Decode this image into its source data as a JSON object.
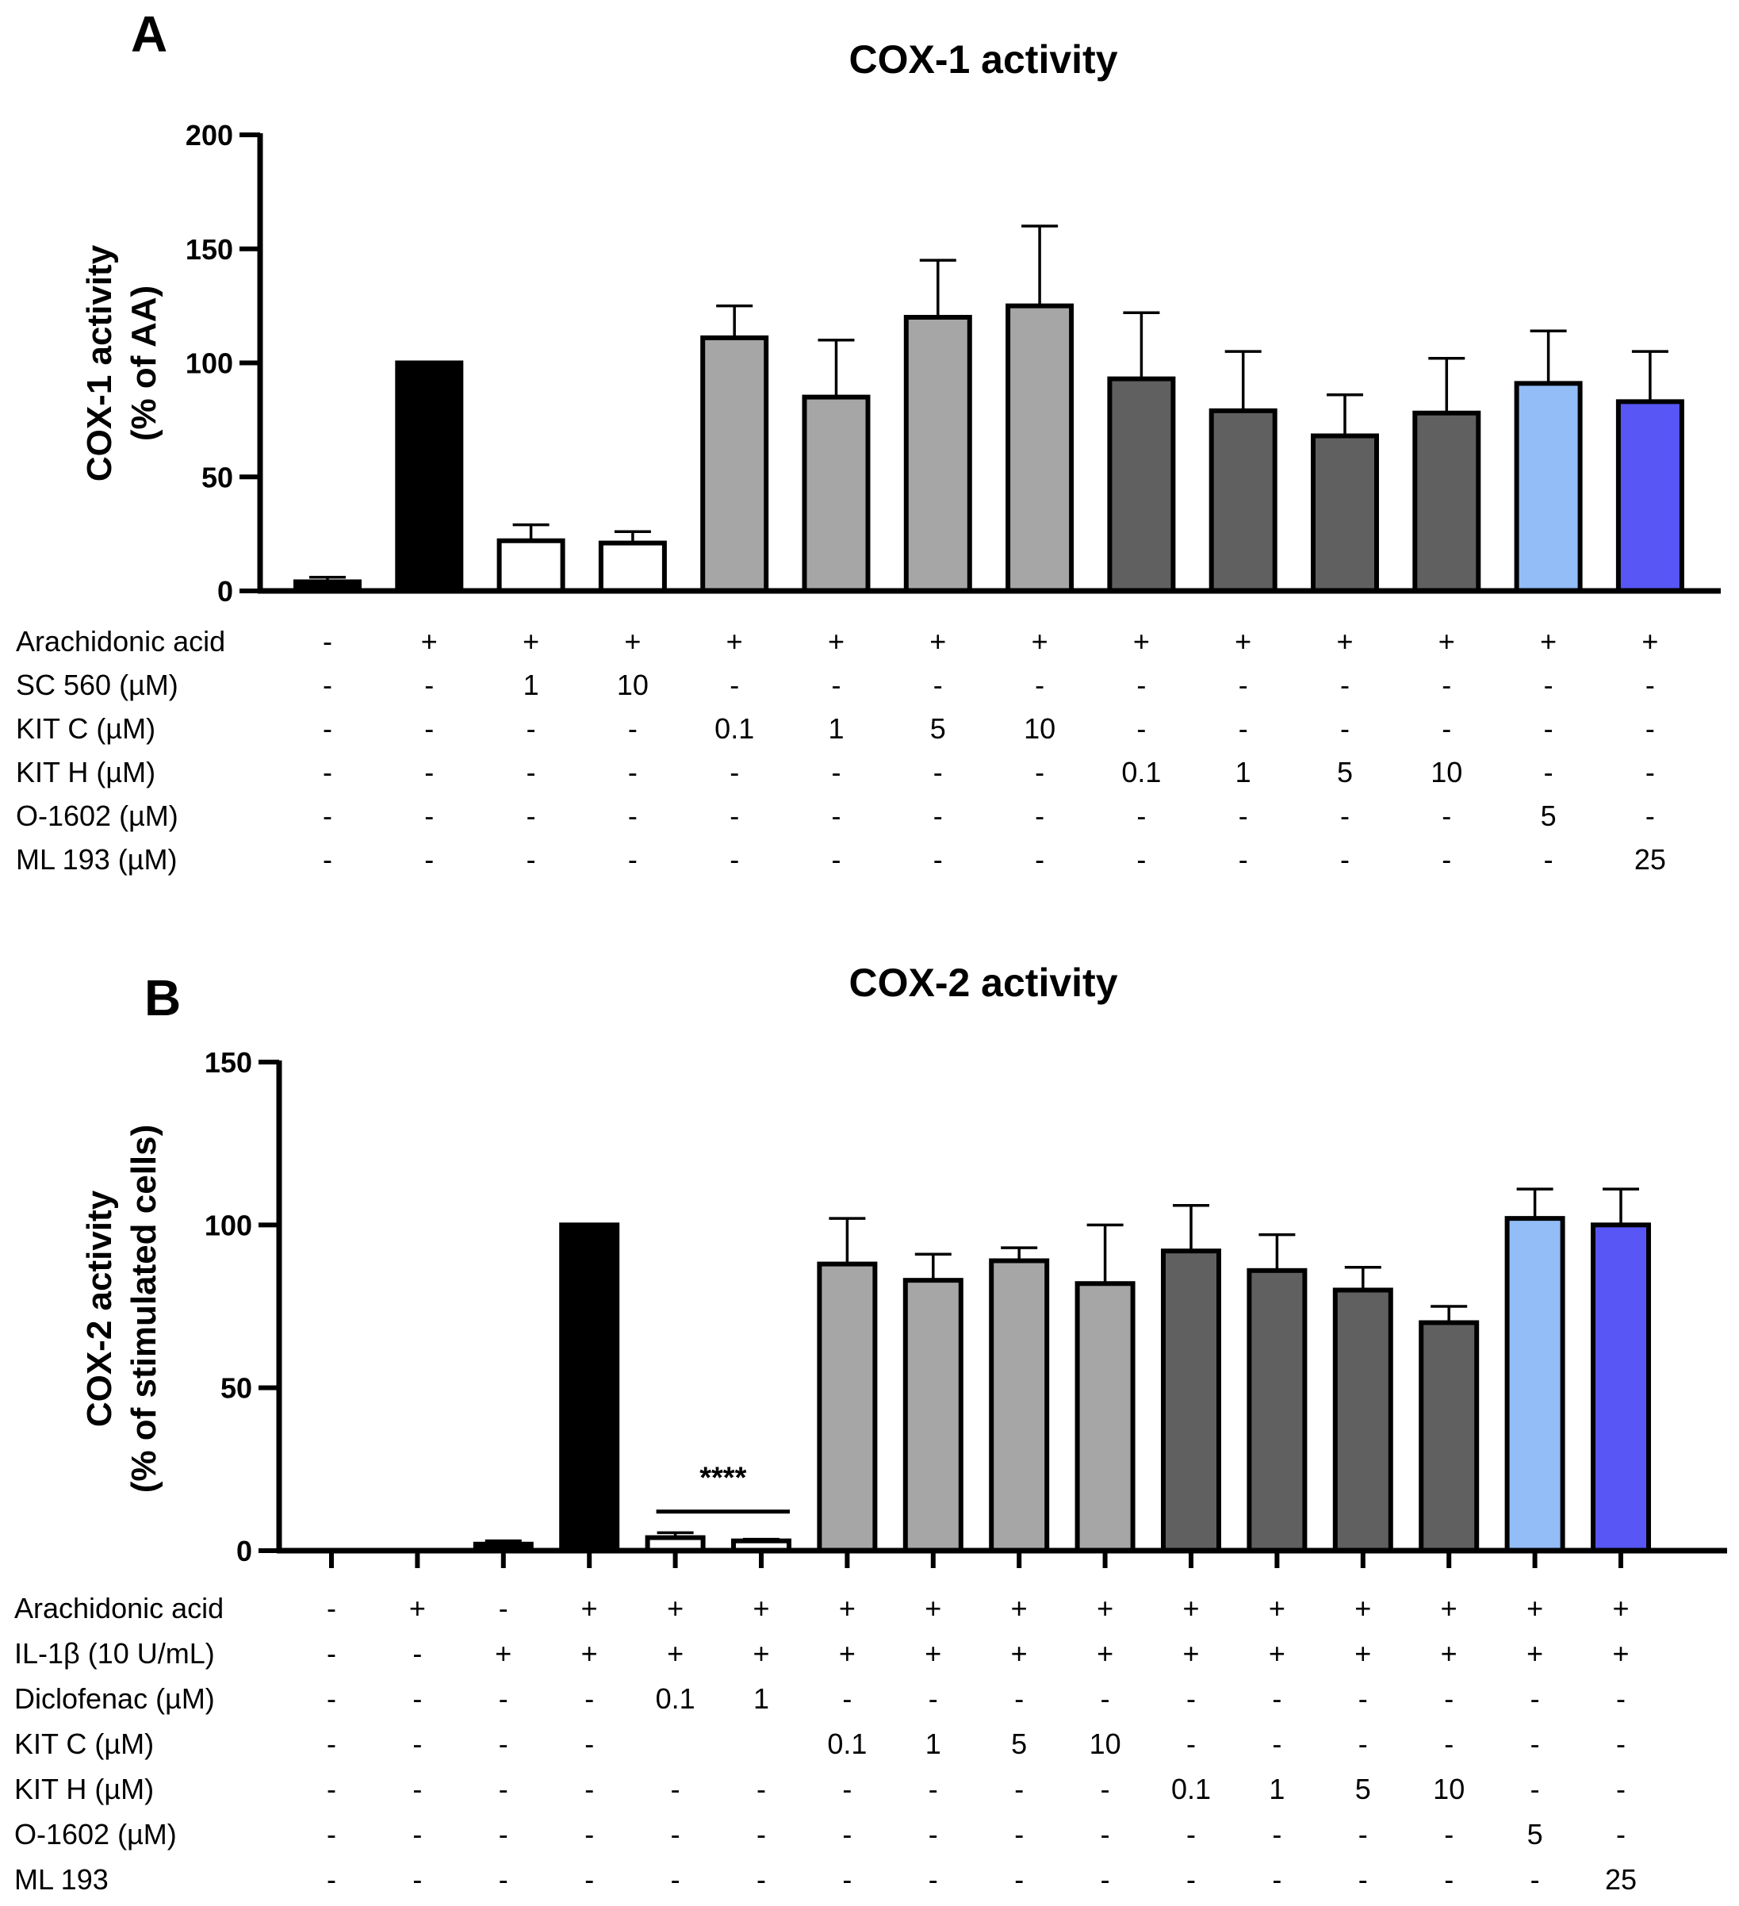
{
  "chart_data": [
    {
      "panel": "A",
      "type": "bar",
      "title": "COX-1 activity",
      "ylabel_lines": [
        "COX-1 activity",
        "(% of AA)"
      ],
      "ylim": [
        0,
        200
      ],
      "yticks": [
        0,
        50,
        100,
        150,
        200
      ],
      "values": [
        4,
        100,
        22,
        21,
        111,
        85,
        120,
        125,
        93,
        79,
        68,
        78,
        91,
        83
      ],
      "errors": [
        2,
        0,
        7,
        5,
        14,
        25,
        25,
        35,
        29,
        26,
        18,
        24,
        23,
        22
      ],
      "fills": [
        "#000000",
        "#000000",
        "#ffffff",
        "#ffffff",
        "#a6a6a6",
        "#a6a6a6",
        "#a6a6a6",
        "#a6a6a6",
        "#606060",
        "#606060",
        "#606060",
        "#606060",
        "#92bdf7",
        "#5856f5"
      ],
      "treatments": [
        {
          "label": "Arachidonic acid",
          "cells": [
            "-",
            "+",
            "+",
            "+",
            "+",
            "+",
            "+",
            "+",
            "+",
            "+",
            "+",
            "+",
            "+",
            "+"
          ]
        },
        {
          "label": "SC 560 (µM)",
          "cells": [
            "-",
            "-",
            "1",
            "10",
            "-",
            "-",
            "-",
            "-",
            "-",
            "-",
            "-",
            "-",
            "-",
            "-"
          ]
        },
        {
          "label": "KIT C (µM)",
          "cells": [
            "-",
            "-",
            "-",
            "-",
            "0.1",
            "1",
            "5",
            "10",
            "-",
            "-",
            "-",
            "-",
            "-",
            "-"
          ]
        },
        {
          "label": "KIT H (µM)",
          "cells": [
            "-",
            "-",
            "-",
            "-",
            "-",
            "-",
            "-",
            "-",
            "0.1",
            "1",
            "5",
            "10",
            "-",
            "-"
          ]
        },
        {
          "label": "O-1602 (µM)",
          "cells": [
            "-",
            "-",
            "-",
            "-",
            "-",
            "-",
            "-",
            "-",
            "-",
            "-",
            "-",
            "-",
            "5",
            "-"
          ]
        },
        {
          "label": "ML 193 (µM)",
          "cells": [
            "-",
            "-",
            "-",
            "-",
            "-",
            "-",
            "-",
            "-",
            "-",
            "-",
            "-",
            "-",
            "-",
            "25"
          ]
        }
      ]
    },
    {
      "panel": "B",
      "type": "bar",
      "title": "COX-2 activity",
      "ylabel_lines": [
        "COX-2 activity",
        "(% of stimulated cells)"
      ],
      "ylim": [
        0,
        150
      ],
      "yticks": [
        0,
        50,
        100,
        150
      ],
      "values": [
        0,
        0,
        2,
        100,
        4,
        3,
        88,
        83,
        89,
        82,
        92,
        86,
        80,
        70,
        102,
        100
      ],
      "errors": [
        0,
        0,
        1,
        0,
        1.5,
        0.5,
        14,
        8,
        4,
        18,
        14,
        11,
        7,
        5,
        9,
        11
      ],
      "fills": [
        "#000000",
        "#000000",
        "#000000",
        "#000000",
        "#ffffff",
        "#ffffff",
        "#a6a6a6",
        "#a6a6a6",
        "#a6a6a6",
        "#a6a6a6",
        "#606060",
        "#606060",
        "#606060",
        "#606060",
        "#92bdf7",
        "#5856f5"
      ],
      "significance": {
        "label": "****",
        "from_bar": 4,
        "to_bar": 5,
        "y": 12
      },
      "treatments": [
        {
          "label": "Arachidonic acid",
          "cells": [
            "-",
            "+",
            "-",
            "+",
            "+",
            "+",
            "+",
            "+",
            "+",
            "+",
            "+",
            "+",
            "+",
            "+",
            "+",
            "+"
          ]
        },
        {
          "label": "IL-1β (10 U/mL)",
          "cells": [
            "-",
            "-",
            "+",
            "+",
            "+",
            "+",
            "+",
            "+",
            "+",
            "+",
            "+",
            "+",
            "+",
            "+",
            "+",
            "+"
          ]
        },
        {
          "label": "Diclofenac (µM)",
          "cells": [
            "-",
            "-",
            "-",
            "-",
            "0.1",
            "1",
            "-",
            "-",
            "-",
            "-",
            "-",
            "-",
            "-",
            "-",
            "-",
            "-"
          ]
        },
        {
          "label": "KIT C (µM)",
          "cells": [
            "-",
            "-",
            "-",
            "-",
            "",
            "",
            "0.1",
            "1",
            "5",
            "10",
            "-",
            "-",
            "-",
            "-",
            "-",
            "-"
          ]
        },
        {
          "label": "KIT H (µM)",
          "cells": [
            "-",
            "-",
            "-",
            "-",
            "-",
            "-",
            "-",
            "-",
            "-",
            "-",
            "0.1",
            "1",
            "5",
            "10",
            "-",
            "-"
          ]
        },
        {
          "label": "O-1602 (µM)",
          "cells": [
            "-",
            "-",
            "-",
            "-",
            "-",
            "-",
            "-",
            "-",
            "-",
            "-",
            "-",
            "-",
            "-",
            "-",
            "5",
            "-"
          ]
        },
        {
          "label": "ML 193",
          "cells": [
            "-",
            "-",
            "-",
            "-",
            "-",
            "-",
            "-",
            "-",
            "-",
            "-",
            "-",
            "-",
            "-",
            "-",
            "-",
            "25"
          ]
        }
      ]
    }
  ]
}
